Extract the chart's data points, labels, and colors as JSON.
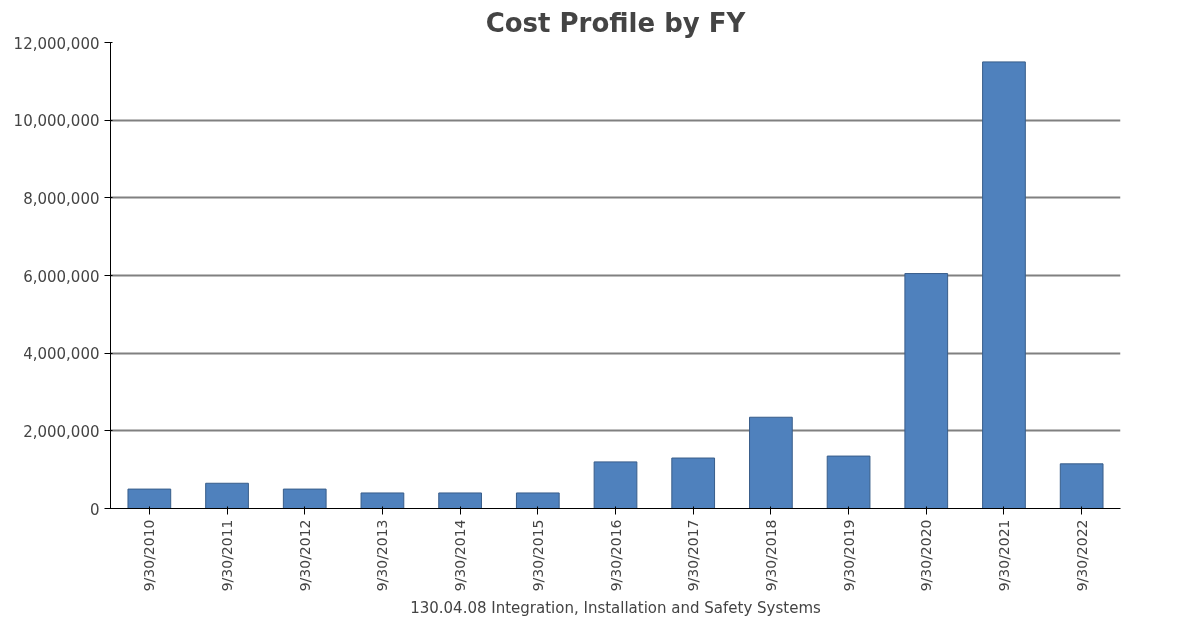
{
  "chart_data": {
    "type": "bar",
    "title": "Cost Profile by FY",
    "xlabel": "130.04.08 Integration, Installation and Safety Systems",
    "categories": [
      "9/30/2010",
      "9/30/2011",
      "9/30/2012",
      "9/30/2013",
      "9/30/2014",
      "9/30/2015",
      "9/30/2016",
      "9/30/2017",
      "9/30/2018",
      "9/30/2019",
      "9/30/2020",
      "9/30/2021",
      "9/30/2022"
    ],
    "values": [
      500000,
      650000,
      500000,
      400000,
      400000,
      400000,
      1200000,
      1300000,
      2350000,
      1350000,
      6050000,
      11500000,
      1150000
    ],
    "color": "#4f81bd",
    "ylim": [
      0,
      12000000
    ],
    "yticks": [
      {
        "value": 0,
        "label": "0"
      },
      {
        "value": 2000000,
        "label": "2,000,000"
      },
      {
        "value": 4000000,
        "label": "4,000,000"
      },
      {
        "value": 6000000,
        "label": "6,000,000"
      },
      {
        "value": 8000000,
        "label": "8,000,000"
      },
      {
        "value": 10000000,
        "label": "10,000,000"
      },
      {
        "value": 12000000,
        "label": "12,000,000"
      }
    ],
    "grid": "y"
  }
}
